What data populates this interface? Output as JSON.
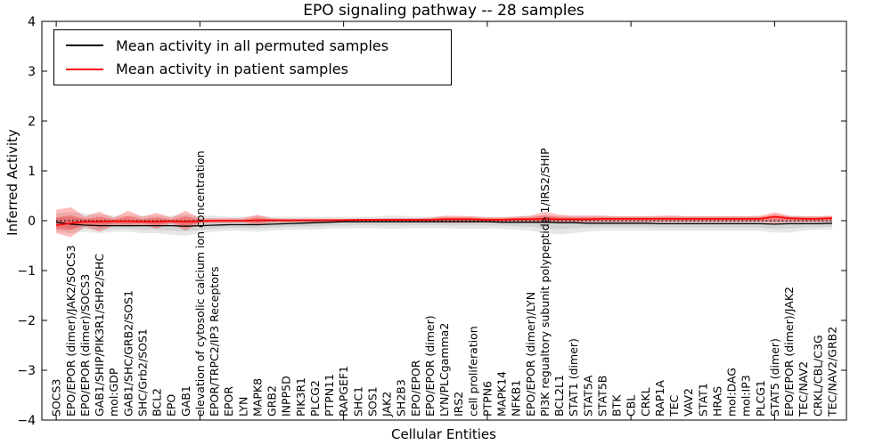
{
  "figure": {
    "title": "EPO signaling pathway -- 28 samples",
    "xlabel": "Cellular Entities",
    "ylabel": "Inferred Activity",
    "legend": [
      {
        "label": "Mean activity in all permuted samples",
        "color": "#000000"
      },
      {
        "label": "Mean activity in patient samples",
        "color": "#ff0000"
      }
    ]
  },
  "chart_data": {
    "type": "line",
    "title": "EPO signaling pathway -- 28 samples",
    "xlabel": "Cellular Entities",
    "ylabel": "Inferred Activity",
    "ylim": [
      -4,
      4
    ],
    "yticks": [
      -4,
      -3,
      -2,
      -1,
      0,
      1,
      2,
      3,
      4
    ],
    "xtick_major_indices": [
      0,
      10,
      20,
      30,
      40,
      50
    ],
    "grid": false,
    "legend_position": "upper left",
    "zero_line": {
      "y": 0,
      "style": "dotted",
      "color": "#000000"
    },
    "band_colors": {
      "permuted": "rgba(120,120,120,0.18)",
      "patient": "rgba(255,0,0,0.26)"
    },
    "categories": [
      "SOCS3",
      "EPO/EPOR (dimer)/JAK2/SOCS3",
      "EPO/EPOR (dimer)/SOCS3",
      "GAB1/SHIP/PIK3R1/SHP2/SHC",
      "mol:GDP",
      "GAB1/SHC/GRB2/SOS1",
      "SHC/Grb2/SOS1",
      "BCL2",
      "EPO",
      "GAB1",
      "elevation of cytosolic calcium ion concentration",
      "EPOR/TRPC2/IP3 Receptors",
      "EPOR",
      "LYN",
      "MAPK8",
      "GRB2",
      "INPP5D",
      "PIK3R1",
      "PLCG2",
      "PTPN11",
      "RAPGEF1",
      "SHC1",
      "SOS1",
      "JAK2",
      "SH2B3",
      "EPO/EPOR",
      "EPO/EPOR (dimer)",
      "LYN/PLCgamma2",
      "IRS2",
      "cell proliferation",
      "PTPN6",
      "MAPK14",
      "NFKB1",
      "EPO/EPOR (dimer)/LYN",
      "PI3K regualtory subunit polypeptide 1/IRS2/SHIP",
      "BCL2L1",
      "STAT1 (dimer)",
      "STAT5A",
      "STAT5B",
      "BTK",
      "CBL",
      "CRKL",
      "RAP1A",
      "TEC",
      "VAV2",
      "STAT1",
      "HRAS",
      "mol:DAG",
      "mol:IP3",
      "PLCG1",
      "STAT5 (dimer)",
      "EPO/EPOR (dimer)/JAK2",
      "TEC/NAV2",
      "CRKL/CBL/C3G",
      "TEC/NAV2/GRB2"
    ],
    "series": [
      {
        "name": "Mean activity in all permuted samples",
        "color": "#000000",
        "values": [
          -0.03,
          -0.07,
          -0.09,
          -0.1,
          -0.1,
          -0.1,
          -0.1,
          -0.1,
          -0.1,
          -0.11,
          -0.1,
          -0.09,
          -0.08,
          -0.08,
          -0.08,
          -0.07,
          -0.06,
          -0.05,
          -0.04,
          -0.03,
          -0.02,
          -0.02,
          -0.02,
          -0.02,
          -0.02,
          -0.02,
          -0.02,
          -0.02,
          -0.02,
          -0.02,
          -0.02,
          -0.03,
          -0.03,
          -0.03,
          -0.03,
          -0.04,
          -0.04,
          -0.05,
          -0.05,
          -0.05,
          -0.05,
          -0.05,
          -0.06,
          -0.06,
          -0.06,
          -0.06,
          -0.06,
          -0.06,
          -0.06,
          -0.06,
          -0.07,
          -0.06,
          -0.06,
          -0.06,
          -0.05
        ],
        "band_upper": [
          0.15,
          0.18,
          0.15,
          0.12,
          0.1,
          0.1,
          0.1,
          0.1,
          0.1,
          0.12,
          0.1,
          0.1,
          0.08,
          0.08,
          0.1,
          0.08,
          0.08,
          0.08,
          0.08,
          0.08,
          0.08,
          0.08,
          0.08,
          0.1,
          0.1,
          0.08,
          0.08,
          0.08,
          0.08,
          0.08,
          0.08,
          0.08,
          0.09,
          0.1,
          0.1,
          0.1,
          0.1,
          0.1,
          0.1,
          0.09,
          0.09,
          0.09,
          0.09,
          0.1,
          0.09,
          0.09,
          0.09,
          0.09,
          0.09,
          0.09,
          0.1,
          0.1,
          0.09,
          0.09,
          0.1
        ],
        "band_lower": [
          -0.22,
          -0.25,
          -0.22,
          -0.25,
          -0.22,
          -0.22,
          -0.25,
          -0.25,
          -0.28,
          -0.3,
          -0.25,
          -0.22,
          -0.2,
          -0.2,
          -0.22,
          -0.2,
          -0.18,
          -0.18,
          -0.18,
          -0.16,
          -0.16,
          -0.15,
          -0.15,
          -0.16,
          -0.16,
          -0.15,
          -0.15,
          -0.15,
          -0.16,
          -0.16,
          -0.16,
          -0.16,
          -0.18,
          -0.2,
          -0.25,
          -0.28,
          -0.25,
          -0.22,
          -0.2,
          -0.2,
          -0.2,
          -0.2,
          -0.2,
          -0.2,
          -0.2,
          -0.2,
          -0.2,
          -0.2,
          -0.2,
          -0.2,
          -0.24,
          -0.24,
          -0.2,
          -0.18,
          -0.18
        ]
      },
      {
        "name": "Mean activity in patient samples",
        "color": "#ff0000",
        "values": [
          -0.09,
          -0.05,
          -0.02,
          -0.02,
          -0.01,
          -0.01,
          -0.02,
          -0.02,
          -0.01,
          -0.02,
          -0.01,
          0.0,
          0.0,
          0.0,
          0.01,
          0.01,
          0.01,
          0.01,
          0.01,
          0.01,
          0.01,
          0.02,
          0.02,
          0.02,
          0.02,
          0.02,
          0.02,
          0.03,
          0.03,
          0.03,
          0.02,
          0.02,
          0.03,
          0.03,
          0.04,
          0.03,
          0.03,
          0.03,
          0.04,
          0.04,
          0.04,
          0.04,
          0.04,
          0.04,
          0.04,
          0.04,
          0.04,
          0.04,
          0.04,
          0.04,
          0.08,
          0.05,
          0.04,
          0.04,
          0.05
        ],
        "band_upper": [
          0.22,
          0.27,
          0.08,
          0.18,
          0.06,
          0.2,
          0.08,
          0.16,
          0.06,
          0.2,
          0.05,
          0.05,
          0.05,
          0.05,
          0.12,
          0.05,
          0.04,
          0.04,
          0.04,
          0.04,
          0.04,
          0.04,
          0.04,
          0.04,
          0.05,
          0.05,
          0.06,
          0.1,
          0.1,
          0.09,
          0.07,
          0.07,
          0.08,
          0.1,
          0.18,
          0.12,
          0.1,
          0.1,
          0.1,
          0.09,
          0.09,
          0.09,
          0.1,
          0.1,
          0.09,
          0.09,
          0.09,
          0.09,
          0.09,
          0.1,
          0.17,
          0.1,
          0.09,
          0.09,
          0.1
        ],
        "band_lower": [
          -0.25,
          -0.33,
          -0.12,
          -0.22,
          -0.1,
          -0.12,
          -0.08,
          -0.16,
          -0.06,
          -0.2,
          -0.05,
          -0.05,
          -0.05,
          -0.04,
          -0.1,
          -0.04,
          -0.04,
          -0.03,
          -0.03,
          -0.03,
          -0.03,
          -0.03,
          -0.03,
          -0.03,
          -0.03,
          -0.03,
          -0.03,
          -0.04,
          -0.04,
          -0.04,
          -0.03,
          -0.03,
          -0.03,
          -0.04,
          -0.05,
          -0.04,
          -0.04,
          -0.03,
          -0.03,
          -0.03,
          -0.03,
          -0.03,
          -0.03,
          -0.03,
          -0.03,
          -0.03,
          -0.03,
          -0.03,
          -0.03,
          -0.03,
          -0.05,
          -0.03,
          -0.03,
          -0.03,
          -0.02
        ]
      }
    ]
  }
}
